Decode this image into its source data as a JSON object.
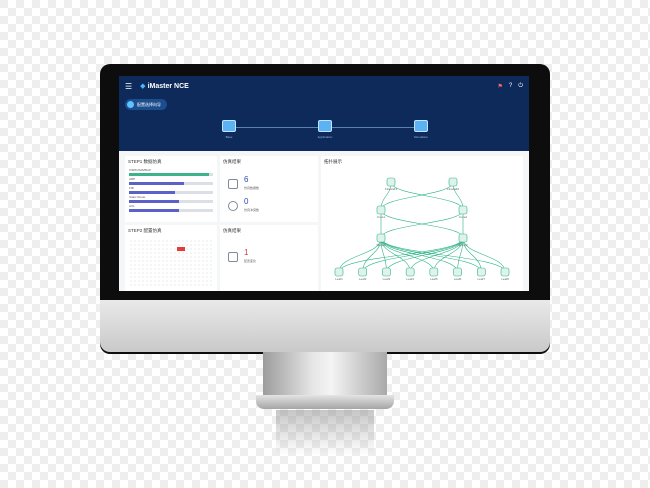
{
  "app": {
    "title": "iMaster NCE"
  },
  "header": {
    "device_pill": "配置选择向导"
  },
  "steps": [
    {
      "label": "Base"
    },
    {
      "label": "Application"
    },
    {
      "label": "Simulation"
    }
  ],
  "cards": {
    "left_top_title": "STEP1 数据仿真",
    "left_bottom_title": "STEP2 配置仿真",
    "mid_top_title": "仿真结果",
    "mid_bottom_title": "仿真结果",
    "right_title": "拓扑展示"
  },
  "bars": [
    {
      "label": "OSPF/ISIS/BGP",
      "value": 0.95,
      "color": "#3db38a"
    },
    {
      "label": "ARP",
      "value": 0.65,
      "color": "#5b61c9"
    },
    {
      "label": "FIB",
      "value": 0.55,
      "color": "#5b61c9"
    },
    {
      "label": "Static Route",
      "value": 0.6,
      "color": "#5b61c9"
    },
    {
      "label": "ACL",
      "value": 0.6,
      "color": "#5b61c9"
    }
  ],
  "stats": {
    "a": {
      "value": "6",
      "label": "仿真数据数"
    },
    "b": {
      "value": "0",
      "label": "仿真冲突数"
    },
    "c": {
      "value": "1",
      "label": "配置变化"
    }
  },
  "topology": {
    "nodes": [
      {
        "id": "fw1",
        "label": "Firewall1",
        "level": 0
      },
      {
        "id": "fw2",
        "label": "Firewall2",
        "level": 0
      },
      {
        "id": "c1",
        "label": "Core1",
        "level": 1
      },
      {
        "id": "c2",
        "label": "Core2",
        "level": 1
      },
      {
        "id": "s1",
        "label": "Spine1",
        "level": 2
      },
      {
        "id": "s2",
        "label": "Spine2",
        "level": 2
      },
      {
        "id": "l1",
        "label": "Leaf1",
        "level": 3
      },
      {
        "id": "l2",
        "label": "Leaf2",
        "level": 3
      },
      {
        "id": "l3",
        "label": "Leaf3",
        "level": 3
      },
      {
        "id": "l4",
        "label": "Leaf4",
        "level": 3
      },
      {
        "id": "l5",
        "label": "Leaf5",
        "level": 3
      },
      {
        "id": "l6",
        "label": "Leaf6",
        "level": 3
      },
      {
        "id": "l7",
        "label": "Leaf7",
        "level": 3
      },
      {
        "id": "l8",
        "label": "Leaf8",
        "level": 3
      }
    ],
    "edges": [
      [
        "fw1",
        "c1"
      ],
      [
        "fw1",
        "c2"
      ],
      [
        "fw2",
        "c1"
      ],
      [
        "fw2",
        "c2"
      ],
      [
        "c1",
        "s1"
      ],
      [
        "c1",
        "s2"
      ],
      [
        "c2",
        "s1"
      ],
      [
        "c2",
        "s2"
      ],
      [
        "s1",
        "l1"
      ],
      [
        "s1",
        "l2"
      ],
      [
        "s1",
        "l3"
      ],
      [
        "s1",
        "l4"
      ],
      [
        "s1",
        "l5"
      ],
      [
        "s1",
        "l6"
      ],
      [
        "s1",
        "l7"
      ],
      [
        "s1",
        "l8"
      ],
      [
        "s2",
        "l1"
      ],
      [
        "s2",
        "l2"
      ],
      [
        "s2",
        "l3"
      ],
      [
        "s2",
        "l4"
      ],
      [
        "s2",
        "l5"
      ],
      [
        "s2",
        "l6"
      ],
      [
        "s2",
        "l7"
      ],
      [
        "s2",
        "l8"
      ]
    ]
  },
  "colors": {
    "header_bg": "#0d2a5a",
    "accent": "#2bb488",
    "node_fill": "#dff3ec"
  }
}
